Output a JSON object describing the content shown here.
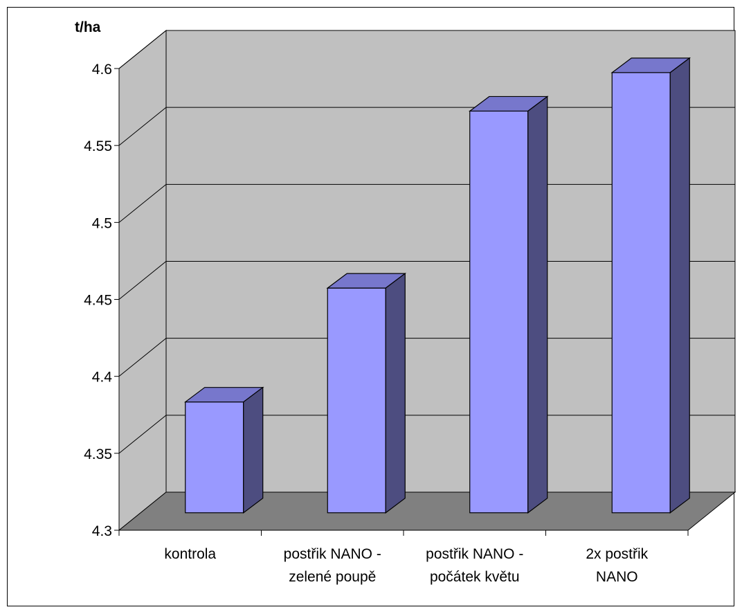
{
  "chart_data": {
    "type": "bar",
    "title": "",
    "xlabel": "",
    "ylabel": "t/ha",
    "categories": [
      [
        "kontrola"
      ],
      [
        "postřik NANO -",
        "zelené poupě"
      ],
      [
        "postřik NANO -",
        "počátek květu"
      ],
      [
        "2x postřik",
        "NANO"
      ]
    ],
    "values": [
      4.372,
      4.446,
      4.561,
      4.586
    ],
    "ylim": [
      4.3,
      4.6
    ],
    "yticks": [
      "4.3",
      "4.35",
      "4.4",
      "4.45",
      "4.5",
      "4.55",
      "4.6"
    ],
    "grid": true,
    "legend": "none",
    "three_d": true
  },
  "colors": {
    "bar_front": "#9999ff",
    "bar_top": "#7777cc",
    "bar_side": "#4d4d80",
    "wall": "#c0c0c0",
    "floor": "#808080",
    "grid": "#000000"
  }
}
